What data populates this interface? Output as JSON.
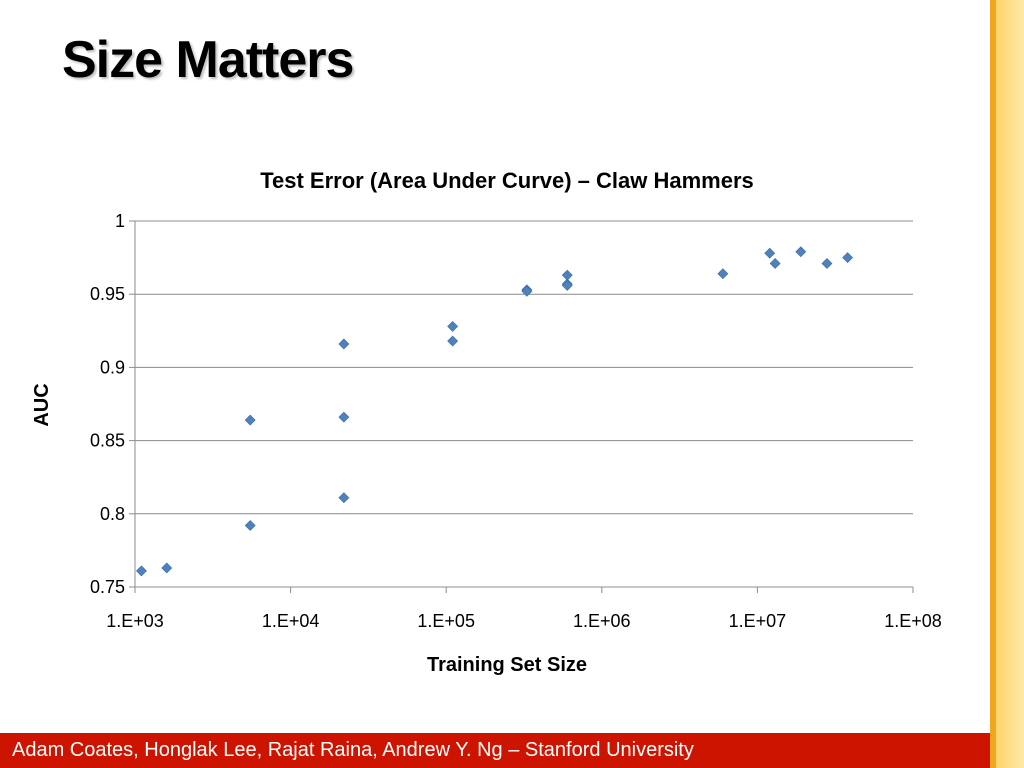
{
  "slide": {
    "title": "Size Matters",
    "footer": "Adam Coates, Honglak Lee, Rajat Raina, Andrew Y. Ng – Stanford University"
  },
  "colors": {
    "footer_bar": "#cc1400",
    "marker": "#4f81bd",
    "stripe_gold": "#f0a61e",
    "stripe_yellow": "#ffd36a"
  },
  "chart_data": {
    "type": "scatter",
    "title": "Test Error (Area Under Curve) – Claw Hammers",
    "xlabel": "Training Set Size",
    "ylabel": "AUC",
    "x_scale": "log",
    "xlim": [
      1000,
      100000000
    ],
    "ylim": [
      0.75,
      1
    ],
    "x_ticks": [
      1000,
      10000,
      100000,
      1000000,
      10000000,
      100000000
    ],
    "x_tick_labels": [
      "1.E+03",
      "1.E+04",
      "1.E+05",
      "1.E+06",
      "1.E+07",
      "1.E+08"
    ],
    "y_ticks": [
      0.75,
      0.8,
      0.85,
      0.9,
      0.95,
      1
    ],
    "y_tick_labels": [
      "0.75",
      "0.8",
      "0.85",
      "0.9",
      "0.95",
      "1"
    ],
    "grid": "horizontal",
    "legend": "none",
    "points": [
      {
        "x": 1100,
        "y": 0.761
      },
      {
        "x": 1600,
        "y": 0.763
      },
      {
        "x": 5500,
        "y": 0.864
      },
      {
        "x": 5500,
        "y": 0.792
      },
      {
        "x": 22000,
        "y": 0.916
      },
      {
        "x": 22000,
        "y": 0.866
      },
      {
        "x": 22000,
        "y": 0.811
      },
      {
        "x": 110000,
        "y": 0.928
      },
      {
        "x": 110000,
        "y": 0.918
      },
      {
        "x": 330000,
        "y": 0.953
      },
      {
        "x": 330000,
        "y": 0.952
      },
      {
        "x": 600000,
        "y": 0.963
      },
      {
        "x": 600000,
        "y": 0.957
      },
      {
        "x": 600000,
        "y": 0.956
      },
      {
        "x": 6000000,
        "y": 0.964
      },
      {
        "x": 12000000,
        "y": 0.978
      },
      {
        "x": 13000000,
        "y": 0.971
      },
      {
        "x": 19000000,
        "y": 0.979
      },
      {
        "x": 28000000,
        "y": 0.971
      },
      {
        "x": 38000000,
        "y": 0.975
      }
    ]
  }
}
